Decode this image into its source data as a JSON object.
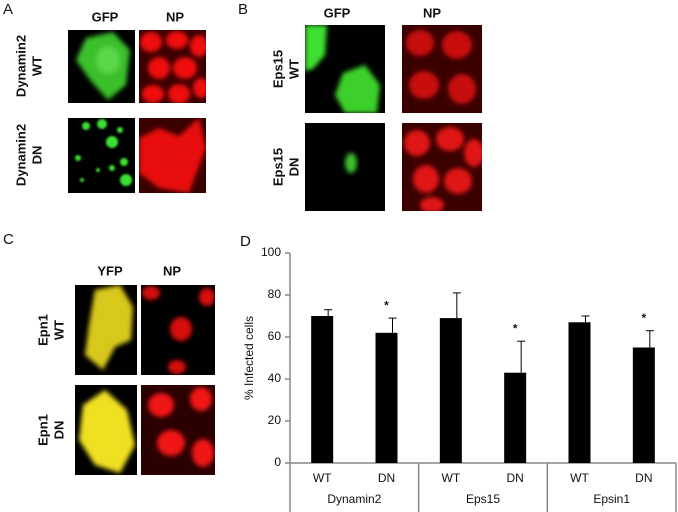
{
  "panels": [
    {
      "label": "A",
      "channels": [
        "GFP",
        "NP"
      ],
      "rows": [
        [
          "Dynamin2",
          "WT"
        ],
        [
          "Dynamin2",
          "DN"
        ]
      ]
    },
    {
      "label": "B",
      "channels": [
        "GFP",
        "NP"
      ],
      "rows": [
        [
          "Eps15",
          "WT"
        ],
        [
          "Eps15",
          "DN"
        ]
      ]
    },
    {
      "label": "C",
      "channels": [
        "YFP",
        "NP"
      ],
      "rows": [
        [
          "Epn1",
          "WT"
        ],
        [
          "Epn1",
          "DN"
        ]
      ]
    }
  ],
  "chart_data": {
    "label": "D",
    "type": "bar",
    "ylabel": "% Infected cells",
    "categories": [
      "WT",
      "DN",
      "WT",
      "DN",
      "WT",
      "DN"
    ],
    "groups": [
      "Dynamin2",
      "Eps15",
      "Epsin1"
    ],
    "values": [
      70,
      62,
      69,
      43,
      67,
      55
    ],
    "errors": [
      3,
      7,
      12,
      15,
      3,
      8
    ],
    "significance": [
      null,
      "*",
      null,
      "*",
      null,
      "*"
    ],
    "color": "#000000",
    "ylim": [
      0,
      100
    ],
    "yticks": [
      0,
      20,
      40,
      60,
      80,
      100
    ]
  }
}
